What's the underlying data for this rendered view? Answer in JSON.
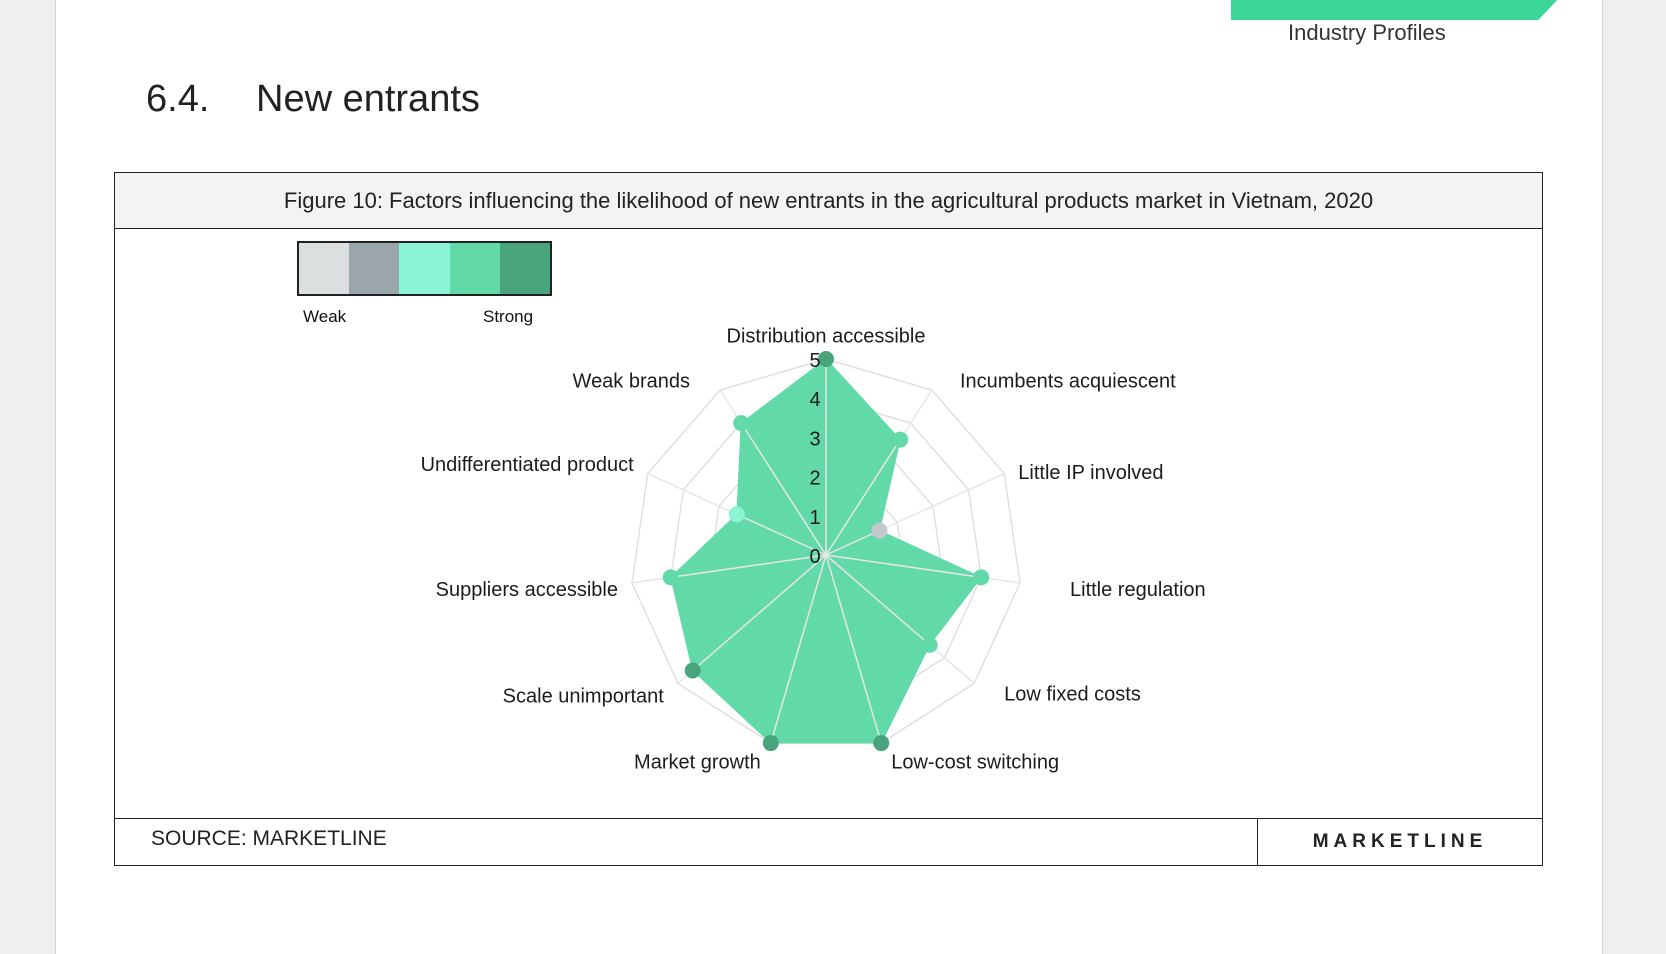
{
  "header": {
    "subtitle": "Industry Profiles"
  },
  "section": {
    "number": "6.4.",
    "title": "New entrants"
  },
  "figure": {
    "caption": "Figure 10: Factors influencing the likelihood of new entrants in the agricultural products market in Vietnam, 2020",
    "source": "SOURCE: MARKETLINE",
    "brand": "MARKETLINE"
  },
  "legend": {
    "weak_label": "Weak",
    "strong_label": "Strong",
    "colors": [
      "#dcdfe0",
      "#9aa6a9",
      "#8af5d4",
      "#62d9a8",
      "#47a47b"
    ]
  },
  "chart_data": {
    "type": "radar",
    "categories": [
      "Distribution accessible",
      "Incumbents acquiescent",
      "Little IP involved",
      "Little regulation",
      "Low fixed costs",
      "Low-cost switching",
      "Market growth",
      "Scale unimportant",
      "Suppliers accessible",
      "Undifferentiated product",
      "Weak brands"
    ],
    "values": [
      5,
      3.5,
      1.5,
      4,
      3.5,
      5,
      5,
      4.5,
      4,
      2.5,
      4
    ],
    "point_colors": [
      "#47a47b",
      "#62d9a8",
      "#c4c8cc",
      "#62d9a8",
      "#62d9a8",
      "#47a47b",
      "#47a47b",
      "#47a47b",
      "#62d9a8",
      "#8af5d4",
      "#62d9a8"
    ],
    "tick_labels": [
      "0",
      "1",
      "2",
      "3",
      "4",
      "5"
    ],
    "rlim": [
      0,
      5
    ],
    "fill_color": "#62d9a8",
    "grid": true
  }
}
